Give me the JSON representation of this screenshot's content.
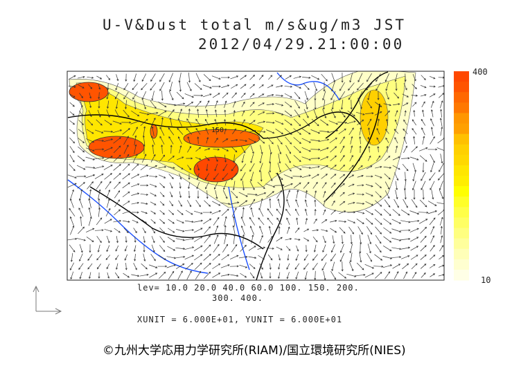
{
  "chart_data": {
    "type": "heatmap",
    "title": "U-V&Dust total m/s&ug/m3 JST",
    "subtitle": "2012/04/29.21:00:00",
    "levels_label": "lev= 10.0 20.0 40.0 60.0 100. 150. 200.",
    "levels_label2": "300. 400.",
    "levels": [
      10,
      20,
      40,
      60,
      100,
      150,
      200,
      300,
      400
    ],
    "units_label": "XUNIT = 6.000E+01, YUNIT = 6.000E+01",
    "colorbar": {
      "min_label": "10",
      "max_label": "400",
      "colors": [
        "#ff4800",
        "#ff5400",
        "#ff6800",
        "#ff7800",
        "#ff9600",
        "#ffa000",
        "#ffc000",
        "#ffd000",
        "#ffd800",
        "#ffe600",
        "#ffee00",
        "#ffff00",
        "#ffff28",
        "#ffff48",
        "#ffff64",
        "#ffff80",
        "#ffff9c",
        "#ffffb8",
        "#ffffd0",
        "#ffffe6"
      ]
    },
    "contour_labels": [
      "150",
      "400"
    ]
  },
  "credit": "©九州大学応用力学研究所(RIAM)/国立環境研究所(NIES)"
}
